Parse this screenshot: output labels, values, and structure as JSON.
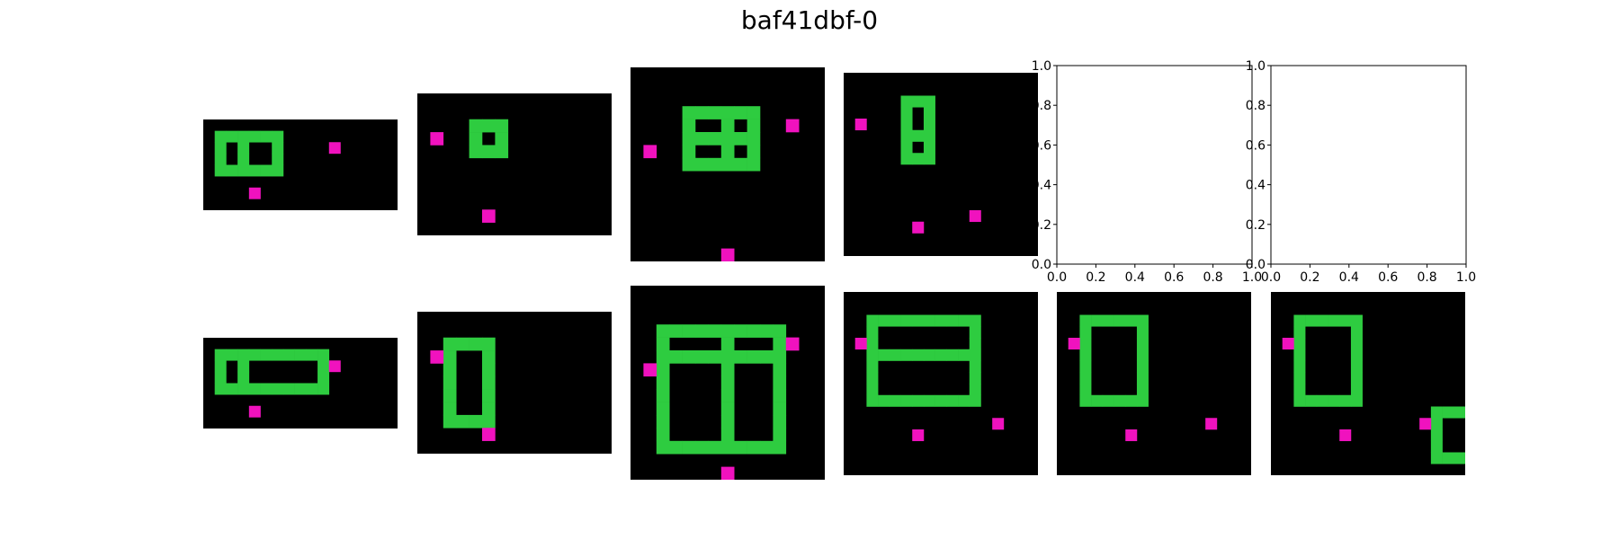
{
  "title": "baf41dbf-0",
  "colors": {
    "background": "#000000",
    "green": "#2ecc40",
    "magenta": "#f012be"
  },
  "axes": {
    "xticks": [
      "0.0",
      "0.2",
      "0.4",
      "0.6",
      "0.8",
      "1.0"
    ],
    "yticks": [
      "0.0",
      "0.2",
      "0.4",
      "0.6",
      "0.8",
      "1.0"
    ]
  },
  "grids": [
    {
      "id": "train-1-input",
      "rows": 8,
      "cols": 17,
      "green": [
        [
          1,
          1
        ],
        [
          1,
          2
        ],
        [
          1,
          3
        ],
        [
          1,
          4
        ],
        [
          1,
          5
        ],
        [
          1,
          6
        ],
        [
          2,
          1
        ],
        [
          2,
          3
        ],
        [
          2,
          6
        ],
        [
          3,
          1
        ],
        [
          3,
          3
        ],
        [
          3,
          6
        ],
        [
          4,
          1
        ],
        [
          4,
          2
        ],
        [
          4,
          3
        ],
        [
          4,
          4
        ],
        [
          4,
          5
        ],
        [
          4,
          6
        ]
      ],
      "magenta": [
        [
          2,
          11
        ],
        [
          6,
          4
        ]
      ]
    },
    {
      "id": "train-1-output",
      "rows": 8,
      "cols": 17,
      "green": [
        [
          1,
          1
        ],
        [
          1,
          2
        ],
        [
          1,
          3
        ],
        [
          1,
          4
        ],
        [
          1,
          5
        ],
        [
          1,
          6
        ],
        [
          1,
          7
        ],
        [
          1,
          8
        ],
        [
          1,
          9
        ],
        [
          1,
          10
        ],
        [
          2,
          1
        ],
        [
          2,
          3
        ],
        [
          2,
          10
        ],
        [
          3,
          1
        ],
        [
          3,
          3
        ],
        [
          3,
          10
        ],
        [
          4,
          1
        ],
        [
          4,
          2
        ],
        [
          4,
          3
        ],
        [
          4,
          4
        ],
        [
          4,
          5
        ],
        [
          4,
          6
        ],
        [
          4,
          7
        ],
        [
          4,
          8
        ],
        [
          4,
          9
        ],
        [
          4,
          10
        ]
      ],
      "magenta": [
        [
          2,
          11
        ],
        [
          6,
          4
        ]
      ]
    },
    {
      "id": "train-2-input",
      "rows": 11,
      "cols": 15,
      "green": [
        [
          2,
          4
        ],
        [
          2,
          5
        ],
        [
          2,
          6
        ],
        [
          3,
          4
        ],
        [
          3,
          6
        ],
        [
          4,
          4
        ],
        [
          4,
          5
        ],
        [
          4,
          6
        ]
      ],
      "magenta": [
        [
          3,
          1
        ],
        [
          9,
          5
        ]
      ]
    },
    {
      "id": "train-2-output",
      "rows": 11,
      "cols": 15,
      "green": [
        [
          2,
          2
        ],
        [
          2,
          3
        ],
        [
          2,
          4
        ],
        [
          2,
          5
        ],
        [
          3,
          2
        ],
        [
          3,
          5
        ],
        [
          4,
          2
        ],
        [
          4,
          5
        ],
        [
          5,
          2
        ],
        [
          5,
          5
        ],
        [
          6,
          2
        ],
        [
          6,
          5
        ],
        [
          7,
          2
        ],
        [
          7,
          5
        ],
        [
          8,
          2
        ],
        [
          8,
          3
        ],
        [
          8,
          4
        ],
        [
          8,
          5
        ]
      ],
      "magenta": [
        [
          3,
          1
        ],
        [
          9,
          5
        ]
      ]
    },
    {
      "id": "train-3-input",
      "rows": 15,
      "cols": 15,
      "green": [
        [
          3,
          4
        ],
        [
          3,
          5
        ],
        [
          3,
          6
        ],
        [
          3,
          7
        ],
        [
          3,
          8
        ],
        [
          3,
          9
        ],
        [
          4,
          4
        ],
        [
          4,
          7
        ],
        [
          4,
          9
        ],
        [
          5,
          4
        ],
        [
          5,
          5
        ],
        [
          5,
          6
        ],
        [
          5,
          7
        ],
        [
          5,
          8
        ],
        [
          5,
          9
        ],
        [
          6,
          4
        ],
        [
          6,
          7
        ],
        [
          6,
          9
        ],
        [
          7,
          4
        ],
        [
          7,
          5
        ],
        [
          7,
          6
        ],
        [
          7,
          7
        ],
        [
          7,
          8
        ],
        [
          7,
          9
        ]
      ],
      "magenta": [
        [
          4,
          12
        ],
        [
          6,
          1
        ],
        [
          14,
          7
        ]
      ]
    },
    {
      "id": "train-3-output",
      "rows": 15,
      "cols": 15,
      "green": [
        [
          3,
          2
        ],
        [
          3,
          3
        ],
        [
          3,
          4
        ],
        [
          3,
          5
        ],
        [
          3,
          6
        ],
        [
          3,
          7
        ],
        [
          3,
          8
        ],
        [
          3,
          9
        ],
        [
          3,
          10
        ],
        [
          3,
          11
        ],
        [
          4,
          2
        ],
        [
          4,
          7
        ],
        [
          4,
          11
        ],
        [
          5,
          2
        ],
        [
          5,
          3
        ],
        [
          5,
          4
        ],
        [
          5,
          5
        ],
        [
          5,
          6
        ],
        [
          5,
          7
        ],
        [
          5,
          8
        ],
        [
          5,
          9
        ],
        [
          5,
          10
        ],
        [
          5,
          11
        ],
        [
          6,
          2
        ],
        [
          6,
          7
        ],
        [
          6,
          11
        ],
        [
          7,
          2
        ],
        [
          7,
          7
        ],
        [
          7,
          11
        ],
        [
          8,
          2
        ],
        [
          8,
          7
        ],
        [
          8,
          11
        ],
        [
          9,
          2
        ],
        [
          9,
          7
        ],
        [
          9,
          11
        ],
        [
          10,
          2
        ],
        [
          10,
          7
        ],
        [
          10,
          11
        ],
        [
          11,
          2
        ],
        [
          11,
          7
        ],
        [
          11,
          11
        ],
        [
          12,
          2
        ],
        [
          12,
          3
        ],
        [
          12,
          4
        ],
        [
          12,
          5
        ],
        [
          12,
          6
        ],
        [
          12,
          7
        ],
        [
          12,
          8
        ],
        [
          12,
          9
        ],
        [
          12,
          10
        ],
        [
          12,
          11
        ]
      ],
      "magenta": [
        [
          4,
          12
        ],
        [
          6,
          1
        ],
        [
          14,
          7
        ]
      ]
    },
    {
      "id": "train-4-input",
      "rows": 16,
      "cols": 17,
      "green": [
        [
          2,
          5
        ],
        [
          2,
          6
        ],
        [
          2,
          7
        ],
        [
          3,
          5
        ],
        [
          3,
          7
        ],
        [
          4,
          5
        ],
        [
          4,
          7
        ],
        [
          5,
          5
        ],
        [
          5,
          6
        ],
        [
          5,
          7
        ],
        [
          6,
          5
        ],
        [
          6,
          7
        ],
        [
          7,
          5
        ],
        [
          7,
          6
        ],
        [
          7,
          7
        ]
      ],
      "magenta": [
        [
          4,
          1
        ],
        [
          12,
          11
        ],
        [
          13,
          6
        ]
      ]
    },
    {
      "id": "train-4-output",
      "rows": 16,
      "cols": 17,
      "green": [
        [
          2,
          2
        ],
        [
          2,
          3
        ],
        [
          2,
          4
        ],
        [
          2,
          5
        ],
        [
          2,
          6
        ],
        [
          2,
          7
        ],
        [
          2,
          8
        ],
        [
          2,
          9
        ],
        [
          2,
          10
        ],
        [
          2,
          11
        ],
        [
          3,
          2
        ],
        [
          3,
          11
        ],
        [
          4,
          2
        ],
        [
          4,
          11
        ],
        [
          5,
          2
        ],
        [
          5,
          3
        ],
        [
          5,
          4
        ],
        [
          5,
          5
        ],
        [
          5,
          6
        ],
        [
          5,
          7
        ],
        [
          5,
          8
        ],
        [
          5,
          9
        ],
        [
          5,
          10
        ],
        [
          5,
          11
        ],
        [
          6,
          2
        ],
        [
          6,
          11
        ],
        [
          7,
          2
        ],
        [
          7,
          11
        ],
        [
          8,
          2
        ],
        [
          8,
          11
        ],
        [
          9,
          2
        ],
        [
          9,
          3
        ],
        [
          9,
          4
        ],
        [
          9,
          5
        ],
        [
          9,
          6
        ],
        [
          9,
          7
        ],
        [
          9,
          8
        ],
        [
          9,
          9
        ],
        [
          9,
          10
        ],
        [
          9,
          11
        ]
      ],
      "magenta": [
        [
          4,
          1
        ],
        [
          12,
          6
        ],
        [
          11,
          13
        ]
      ]
    },
    {
      "id": "test-1-output",
      "rows": 16,
      "cols": 17,
      "green": [
        [
          2,
          2
        ],
        [
          2,
          3
        ],
        [
          2,
          4
        ],
        [
          2,
          5
        ],
        [
          2,
          6
        ],
        [
          2,
          7
        ],
        [
          3,
          2
        ],
        [
          3,
          7
        ],
        [
          4,
          2
        ],
        [
          4,
          7
        ],
        [
          5,
          2
        ],
        [
          5,
          7
        ],
        [
          6,
          2
        ],
        [
          6,
          7
        ],
        [
          7,
          2
        ],
        [
          7,
          7
        ],
        [
          8,
          2
        ],
        [
          8,
          7
        ],
        [
          9,
          2
        ],
        [
          9,
          3
        ],
        [
          9,
          4
        ],
        [
          9,
          5
        ],
        [
          9,
          6
        ],
        [
          9,
          7
        ]
      ],
      "magenta": [
        [
          4,
          1
        ],
        [
          12,
          6
        ],
        [
          11,
          13
        ]
      ]
    },
    {
      "id": "test-2-output",
      "rows": 16,
      "cols": 17,
      "green": [
        [
          2,
          2
        ],
        [
          2,
          3
        ],
        [
          2,
          4
        ],
        [
          2,
          5
        ],
        [
          2,
          6
        ],
        [
          2,
          7
        ],
        [
          3,
          2
        ],
        [
          3,
          7
        ],
        [
          4,
          2
        ],
        [
          4,
          7
        ],
        [
          5,
          2
        ],
        [
          5,
          7
        ],
        [
          6,
          2
        ],
        [
          6,
          7
        ],
        [
          7,
          2
        ],
        [
          7,
          7
        ],
        [
          8,
          2
        ],
        [
          8,
          7
        ],
        [
          9,
          2
        ],
        [
          9,
          3
        ],
        [
          9,
          4
        ],
        [
          9,
          5
        ],
        [
          9,
          6
        ],
        [
          9,
          7
        ],
        [
          10,
          14
        ],
        [
          10,
          15
        ],
        [
          10,
          16
        ],
        [
          11,
          14
        ],
        [
          12,
          14
        ],
        [
          13,
          14
        ],
        [
          14,
          14
        ],
        [
          14,
          15
        ],
        [
          14,
          16
        ]
      ],
      "magenta": [
        [
          4,
          1
        ],
        [
          12,
          6
        ],
        [
          11,
          13
        ]
      ]
    }
  ]
}
